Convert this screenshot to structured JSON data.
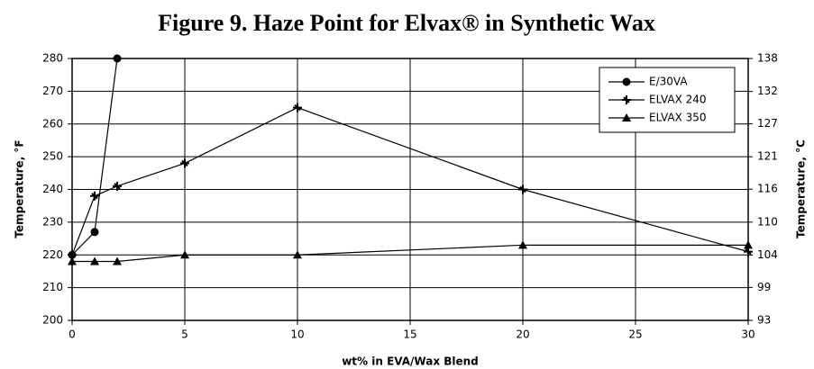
{
  "chart_data": {
    "type": "line",
    "title": "Figure 9. Haze Point for Elvax® in Synthetic Wax",
    "xlabel": "wt% in EVA/Wax Blend",
    "ylabel": "Temperature, °F",
    "y2label": "Temperature, °C",
    "xlim": [
      0,
      30
    ],
    "xticks": [
      0,
      5,
      10,
      15,
      20,
      25,
      30
    ],
    "ylim": [
      200,
      280
    ],
    "yticks": [
      200,
      210,
      220,
      230,
      240,
      250,
      260,
      270,
      280
    ],
    "y2lim": [
      93.3,
      137.8
    ],
    "y2ticks": [
      {
        "value": 93.3,
        "label": "93"
      },
      {
        "value": 98.9,
        "label": "99"
      },
      {
        "value": 104.4,
        "label": "104"
      },
      {
        "value": 110,
        "label": "110"
      },
      {
        "value": 115.6,
        "label": "116"
      },
      {
        "value": 121.1,
        "label": "121"
      },
      {
        "value": 126.7,
        "label": "127"
      },
      {
        "value": 132.2,
        "label": "132"
      },
      {
        "value": 137.8,
        "label": "138"
      }
    ],
    "grid": true,
    "legend": "upper right",
    "series": [
      {
        "name": "E/30VA",
        "color": "#000000",
        "marker": "circle",
        "x": [
          0,
          1,
          2
        ],
        "values": [
          220,
          227,
          280
        ]
      },
      {
        "name": "ELVAX 240",
        "color": "#000000",
        "marker": "plus",
        "x": [
          0,
          1,
          2,
          5,
          10,
          20,
          30
        ],
        "values": [
          220,
          238,
          241,
          248,
          265,
          240,
          221
        ]
      },
      {
        "name": "ELVAX 350",
        "color": "#000000",
        "marker": "triangle",
        "x": [
          0,
          1,
          2,
          5,
          10,
          20,
          30
        ],
        "values": [
          218,
          218,
          218,
          220,
          220,
          223,
          223
        ]
      }
    ]
  }
}
